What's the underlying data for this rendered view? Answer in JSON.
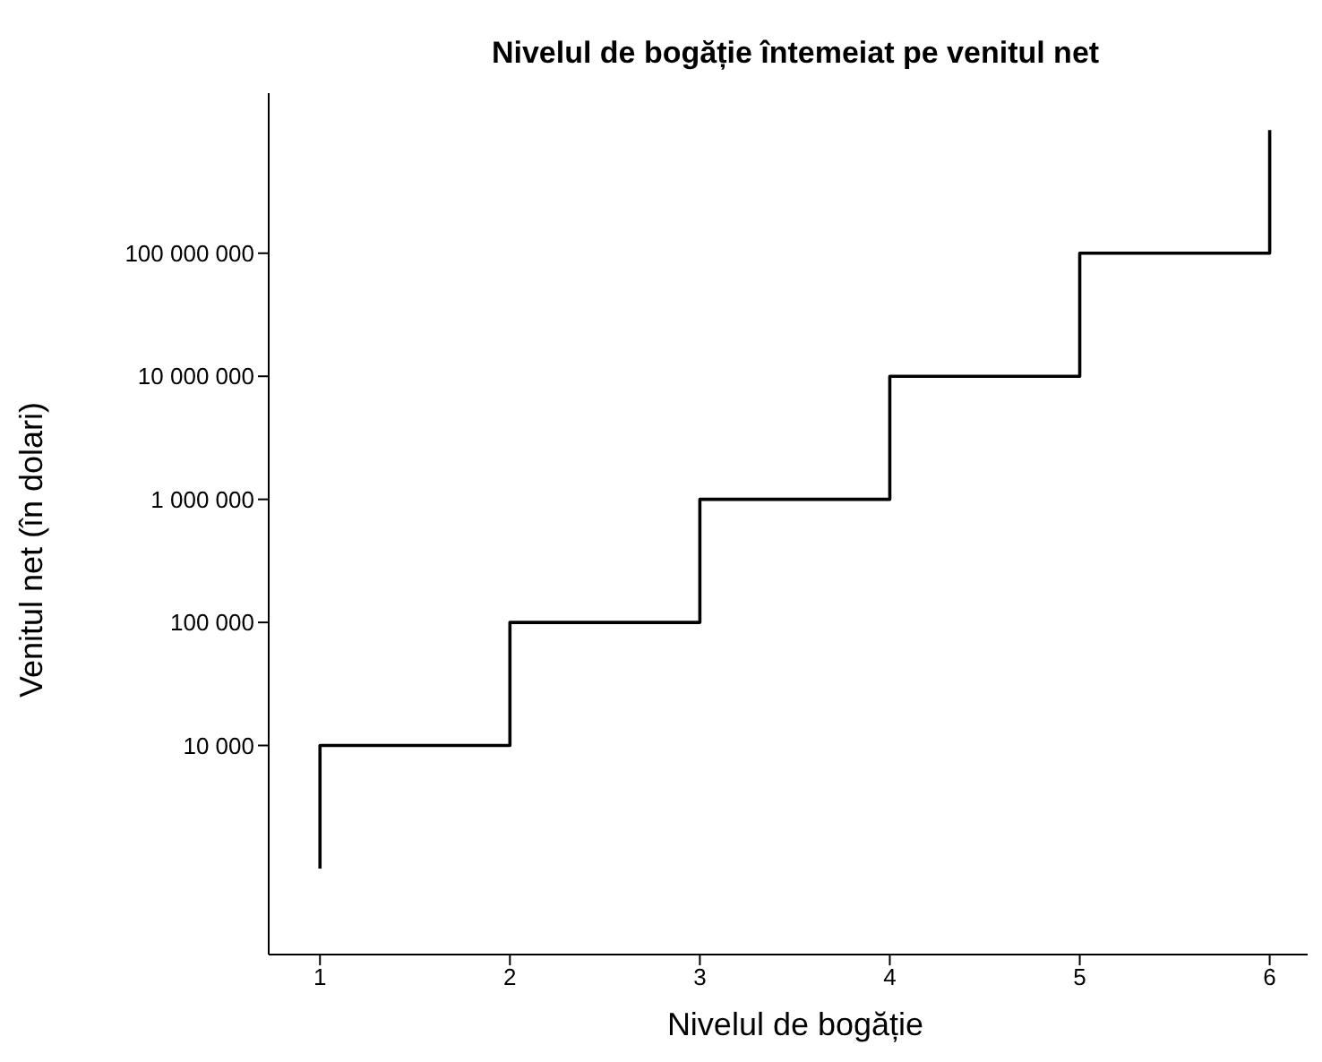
{
  "chart_data": {
    "type": "step",
    "title": "Nivelul de bogăție întemeiat pe venitul net",
    "xlabel": "Nivelul de bogăție",
    "ylabel": "Venitul net (în dolari)",
    "x": [
      1,
      2,
      3,
      4,
      5,
      6,
      6
    ],
    "series": [
      {
        "color": "#000000",
        "values": [
          1000,
          10000,
          100000,
          1000000,
          10000000,
          100000000,
          1000000000
        ]
      }
    ],
    "log": "y",
    "grid": false,
    "legend": false,
    "marker": "none",
    "line_style": "solid",
    "xlim": [
      0.73,
      6.2
    ],
    "xticks": [
      1,
      2,
      3,
      4,
      5,
      6
    ],
    "ylim": [
      200,
      2000000000
    ],
    "yticks": [
      {
        "value": 10000,
        "label": "10 000"
      },
      {
        "value": 100000,
        "label": "100 000"
      },
      {
        "value": 1000000,
        "label": "1 000 000"
      },
      {
        "value": 10000000,
        "label": "10 000 000"
      },
      {
        "value": 100000000,
        "label": "100 000 000"
      }
    ]
  }
}
